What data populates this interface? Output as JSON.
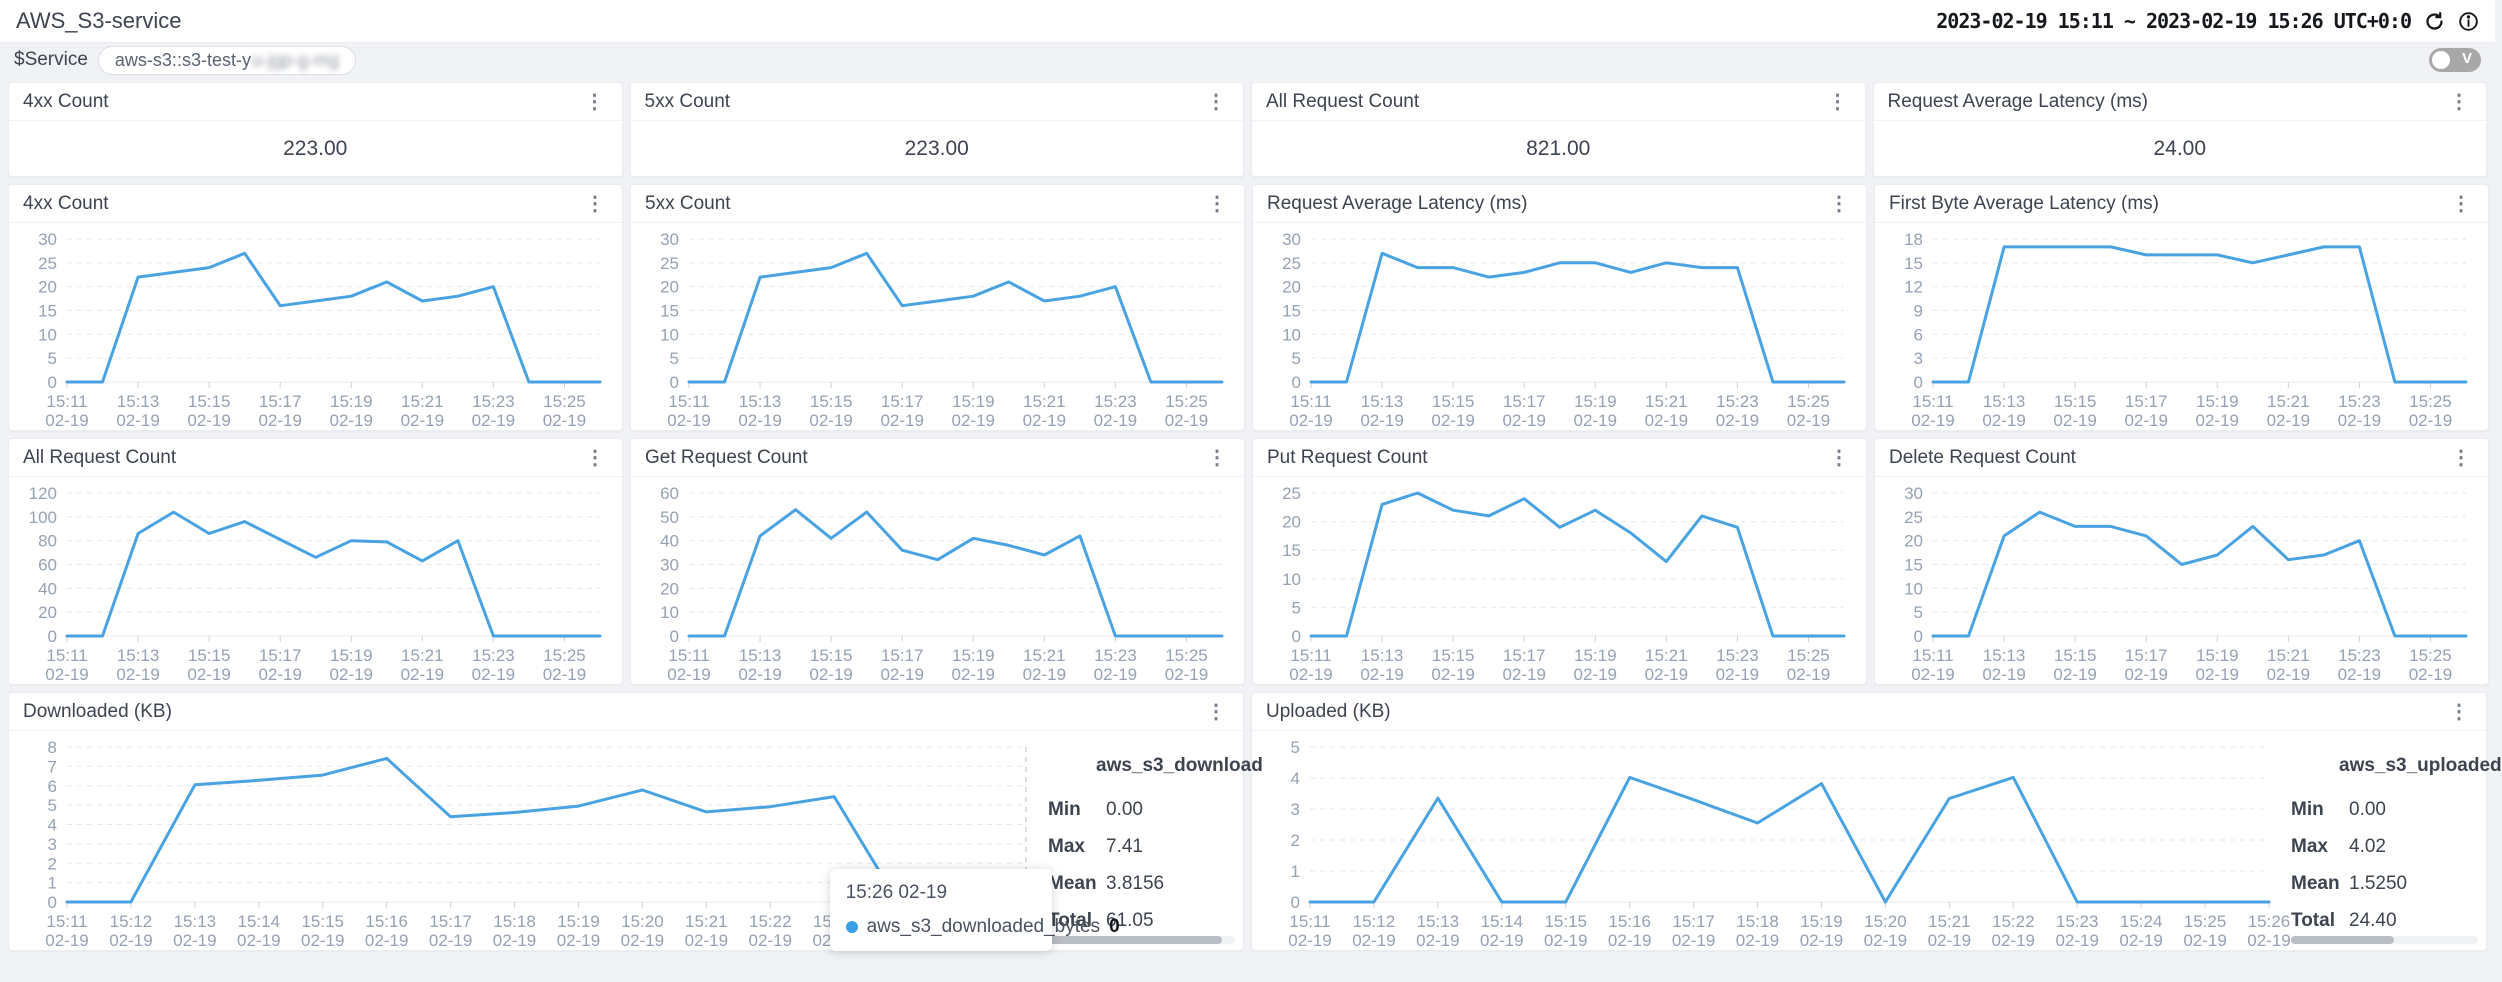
{
  "header": {
    "title": "AWS_S3-service",
    "time_range": "2023-02-19 15:11 ~ 2023-02-19 15:26 UTC+0:0"
  },
  "filter": {
    "label": "$Service",
    "value": "aws-s3::s3-test-y",
    "value_redacted": "u-jgp-g-mg",
    "view_toggle_label": "V"
  },
  "stat_cards": [
    {
      "title": "4xx Count",
      "value": "223.00"
    },
    {
      "title": "5xx Count",
      "value": "223.00"
    },
    {
      "title": "All Request Count",
      "value": "821.00"
    },
    {
      "title": "Request Average Latency (ms)",
      "value": "24.00"
    }
  ],
  "tooltip": {
    "time": "15:26 02-19",
    "series": "aws_s3_downloaded_bytes",
    "value": "0"
  },
  "colors": {
    "line": "#49a3e2",
    "tooltip_dot": "#3ca0e6",
    "grid": "#e3e7ed",
    "axis_text": "#96a1b3",
    "crosshair": "#b6bcc8"
  },
  "chart_data": {
    "type": "line",
    "categories": [
      "15:11",
      "15:12",
      "15:13",
      "15:14",
      "15:15",
      "15:16",
      "15:17",
      "15:18",
      "15:19",
      "15:20",
      "15:21",
      "15:22",
      "15:23",
      "15:24",
      "15:25",
      "15:26"
    ],
    "category_date": "02-19",
    "grid": "dashed",
    "legend_position": "right-stats-table-on-bottom-panels-only",
    "charts": [
      {
        "title": "4xx Count",
        "values": [
          0,
          0,
          22,
          23,
          24,
          27,
          16,
          17,
          18,
          21,
          17,
          18,
          20,
          0,
          0,
          0
        ],
        "yticks": [
          0,
          5,
          10,
          15,
          20,
          25,
          30
        ],
        "ylim": [
          0,
          30
        ],
        "label_every": 2
      },
      {
        "title": "5xx Count",
        "values": [
          0,
          0,
          22,
          23,
          24,
          27,
          16,
          17,
          18,
          21,
          17,
          18,
          20,
          0,
          0,
          0
        ],
        "yticks": [
          0,
          5,
          10,
          15,
          20,
          25,
          30
        ],
        "ylim": [
          0,
          30
        ],
        "label_every": 2
      },
      {
        "title": "Request Average Latency (ms)",
        "values": [
          0,
          0,
          27,
          24,
          24,
          22,
          23,
          25,
          25,
          23,
          25,
          24,
          24,
          0,
          0,
          0
        ],
        "yticks": [
          0,
          5,
          10,
          15,
          20,
          25,
          30
        ],
        "ylim": [
          0,
          30
        ],
        "label_every": 2
      },
      {
        "title": "First Byte Average Latency (ms)",
        "values": [
          0,
          0,
          17,
          17,
          17,
          17,
          16,
          16,
          16,
          15,
          16,
          17,
          17,
          0,
          0,
          0
        ],
        "yticks": [
          0,
          3,
          6,
          9,
          12,
          15,
          18
        ],
        "ylim": [
          0,
          18
        ],
        "label_every": 2
      },
      {
        "title": "All Request Count",
        "values": [
          0,
          0,
          86,
          104,
          86,
          96,
          81,
          66,
          80,
          79,
          63,
          80,
          0,
          0,
          0,
          0
        ],
        "yticks": [
          0,
          20,
          40,
          60,
          80,
          100,
          120
        ],
        "ylim": [
          0,
          120
        ],
        "label_every": 2
      },
      {
        "title": "Get Request Count",
        "values": [
          0,
          0,
          42,
          53,
          41,
          52,
          36,
          32,
          41,
          38,
          34,
          42,
          0,
          0,
          0,
          0
        ],
        "yticks": [
          0,
          10,
          20,
          30,
          40,
          50,
          60
        ],
        "ylim": [
          0,
          60
        ],
        "label_every": 2
      },
      {
        "title": "Put Request Count",
        "values": [
          0,
          0,
          23,
          25,
          22,
          21,
          24,
          19,
          22,
          18,
          13,
          21,
          19,
          0,
          0,
          0
        ],
        "yticks": [
          0,
          5,
          10,
          15,
          20,
          25
        ],
        "ylim": [
          0,
          25
        ],
        "label_every": 2
      },
      {
        "title": "Delete Request Count",
        "values": [
          0,
          0,
          21,
          26,
          23,
          23,
          21,
          15,
          17,
          23,
          16,
          17,
          20,
          0,
          0,
          0
        ],
        "yticks": [
          0,
          5,
          10,
          15,
          20,
          25,
          30
        ],
        "ylim": [
          0,
          30
        ],
        "label_every": 2
      },
      {
        "title": "Downloaded (KB)",
        "values": [
          0,
          0,
          6.05,
          6.28,
          6.55,
          7.41,
          4.4,
          4.62,
          4.95,
          5.78,
          4.65,
          4.92,
          5.44,
          0,
          0,
          0
        ],
        "yticks": [
          0,
          1,
          2,
          3,
          4,
          5,
          6,
          7,
          8
        ],
        "ylim": [
          0,
          8
        ],
        "label_every": 1,
        "crosshair_at": "15:26",
        "has_tooltip": true,
        "scrollbar_thumb": 0.93,
        "stats": {
          "name": "aws_s3_download",
          "rows": [
            [
              "Min",
              "0.00"
            ],
            [
              "Max",
              "7.41"
            ],
            [
              "Mean",
              "3.8156"
            ],
            [
              "Total",
              "61.05"
            ]
          ]
        }
      },
      {
        "title": "Uploaded (KB)",
        "values": [
          0,
          0,
          3.35,
          0,
          0,
          4.02,
          3.3,
          2.55,
          3.82,
          0,
          3.34,
          4.02,
          0,
          0,
          0,
          0
        ],
        "yticks": [
          0,
          1,
          2,
          3,
          4,
          5
        ],
        "ylim": [
          0,
          5
        ],
        "label_every": 1,
        "scrollbar_thumb": 0.55,
        "stats": {
          "name": "aws_s3_uploaded",
          "rows": [
            [
              "Min",
              "0.00"
            ],
            [
              "Max",
              "4.02"
            ],
            [
              "Mean",
              "1.5250"
            ],
            [
              "Total",
              "24.40"
            ]
          ]
        }
      }
    ]
  }
}
